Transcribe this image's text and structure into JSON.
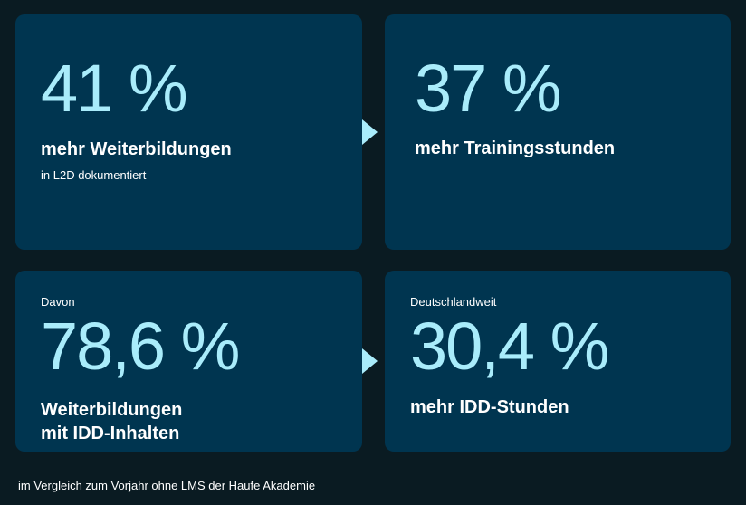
{
  "cards": [
    {
      "value": "41 %",
      "label": "mehr Weiterbildungen",
      "sub": "in L2D dokumentiert"
    },
    {
      "value": "37 %",
      "label": "mehr Trainingsstunden"
    },
    {
      "pre": "Davon",
      "value": "78,6 %",
      "label_line1": "Weiterbildungen",
      "label_line2": "mit IDD-Inhalten"
    },
    {
      "pre": "Deutschlandweit",
      "value": "30,4 %",
      "label": "mehr IDD-Stunden"
    }
  ],
  "footnote": "im Vergleich zum Vorjahr ohne LMS der Haufe Akademie",
  "colors": {
    "background": "#0a1b22",
    "card": "#003550",
    "accent": "#a9ecfb",
    "text": "#ffffff"
  }
}
